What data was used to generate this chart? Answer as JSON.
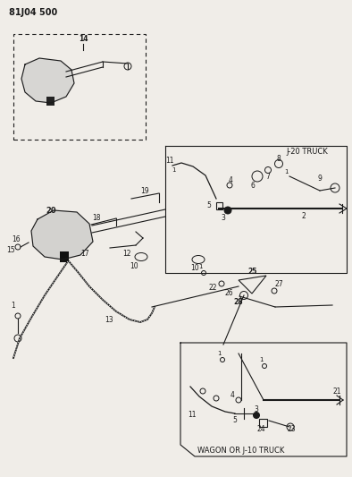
{
  "title_code": "81J04 500",
  "bg_color": "#f0ede8",
  "line_color": "#1a1a1a",
  "fig_width": 3.94,
  "fig_height": 5.33,
  "dpi": 100,
  "label_j20": "J-20 TRUCK",
  "label_wagon": "WAGON OR J-10 TRUCK"
}
